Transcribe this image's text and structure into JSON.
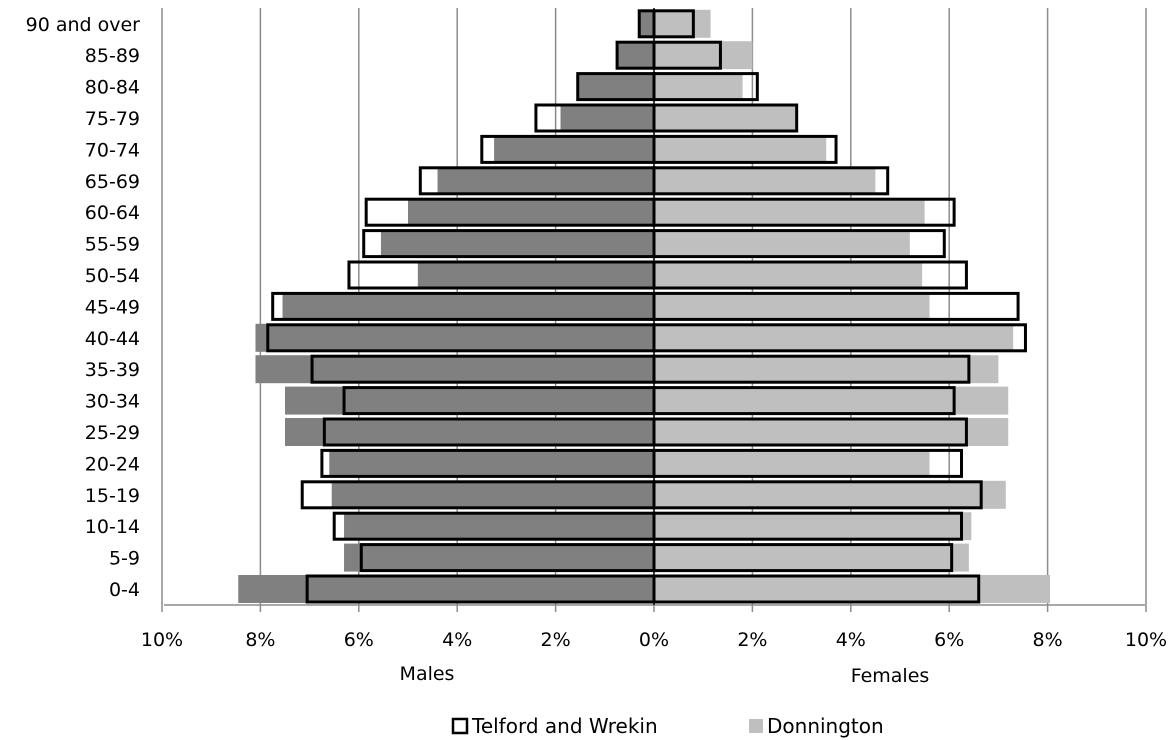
{
  "chart_data": {
    "type": "bar",
    "subtype": "population-pyramid",
    "orientation": "horizontal",
    "categories": [
      "0-4",
      "5-9",
      "10-14",
      "15-19",
      "20-24",
      "25-29",
      "30-34",
      "35-39",
      "40-44",
      "45-49",
      "50-54",
      "55-59",
      "60-64",
      "65-69",
      "70-74",
      "75-79",
      "80-84",
      "85-89",
      "90 and over"
    ],
    "x_ticks": [
      "10%",
      "8%",
      "6%",
      "4%",
      "2%",
      "0%",
      "2%",
      "4%",
      "6%",
      "8%",
      "10%"
    ],
    "xlim": [
      -10,
      10
    ],
    "side_labels": {
      "left": "Males",
      "right": "Females"
    },
    "grid": true,
    "legend_position": "bottom",
    "series": [
      {
        "name": "Donnington",
        "color": "#808080",
        "female_color": "#bfbfbf",
        "males": [
          8.45,
          6.3,
          6.3,
          6.55,
          6.6,
          7.5,
          7.5,
          8.1,
          8.1,
          7.55,
          4.8,
          5.55,
          5.0,
          4.4,
          3.25,
          1.9,
          1.55,
          0.75,
          0.3
        ],
        "females": [
          8.05,
          6.4,
          6.45,
          7.15,
          5.6,
          7.2,
          7.2,
          7.0,
          7.3,
          5.6,
          5.45,
          5.2,
          5.5,
          4.5,
          3.5,
          2.9,
          1.8,
          2.0,
          1.15
        ]
      },
      {
        "name": "Telford and Wrekin",
        "style": "outline",
        "color": "#000000",
        "males": [
          7.05,
          5.95,
          6.5,
          7.15,
          6.75,
          6.7,
          6.3,
          6.95,
          7.85,
          7.75,
          6.2,
          5.9,
          5.85,
          4.75,
          3.5,
          2.4,
          1.55,
          0.75,
          0.3
        ],
        "females": [
          6.6,
          6.05,
          6.25,
          6.65,
          6.25,
          6.35,
          6.1,
          6.4,
          7.55,
          7.4,
          6.35,
          5.9,
          6.1,
          4.75,
          3.7,
          2.9,
          2.1,
          1.35,
          0.8
        ]
      }
    ],
    "legend": [
      {
        "label": "Telford and Wrekin",
        "swatch": "outline"
      },
      {
        "label": "Donnington",
        "swatch": "#bfbfbf"
      }
    ]
  }
}
